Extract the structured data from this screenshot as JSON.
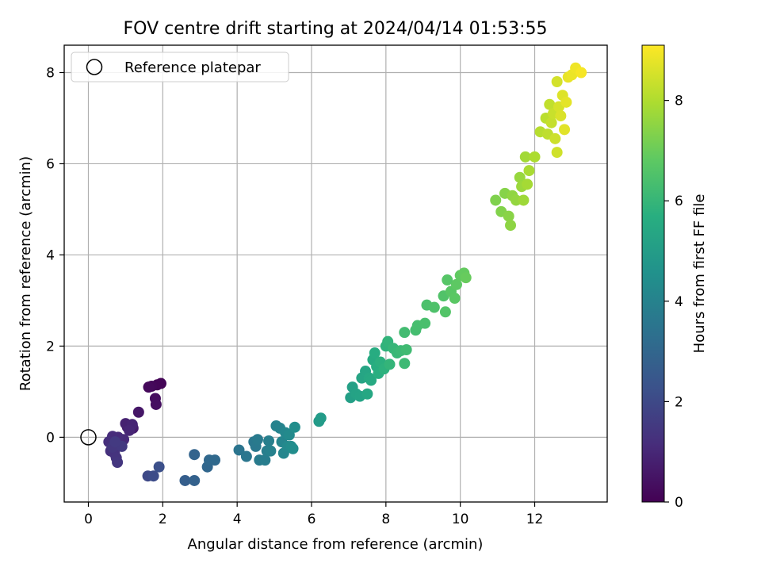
{
  "chart_data": {
    "type": "scatter",
    "title": "FOV centre drift starting at 2024/04/14 01:53:55",
    "xlabel": "Angular distance from reference (arcmin)",
    "ylabel": "Rotation from reference (arcmin)",
    "xlim": [
      -0.65,
      13.95
    ],
    "ylim": [
      -1.42,
      8.6
    ],
    "xticks": [
      0,
      2,
      4,
      6,
      8,
      10,
      12
    ],
    "yticks": [
      0,
      2,
      4,
      6,
      8
    ],
    "grid": true,
    "legend": {
      "placement": "top-left",
      "entries": [
        "Reference platepar"
      ]
    },
    "reference_point": {
      "x": 0,
      "y": 0,
      "marker": "hollow-circle",
      "label": "Reference platepar"
    },
    "colorbar": {
      "label": "Hours from first FF file",
      "colormap": "viridis",
      "range": [
        0,
        9.1
      ],
      "ticks": [
        0,
        2,
        4,
        6,
        8
      ]
    },
    "points": [
      {
        "x": 1.85,
        "y": 1.15,
        "t": 0.05
      },
      {
        "x": 1.95,
        "y": 1.18,
        "t": 0.1
      },
      {
        "x": 1.7,
        "y": 1.12,
        "t": 0.15
      },
      {
        "x": 1.62,
        "y": 1.1,
        "t": 0.2
      },
      {
        "x": 1.8,
        "y": 0.85,
        "t": 0.3
      },
      {
        "x": 1.82,
        "y": 0.72,
        "t": 0.35
      },
      {
        "x": 1.35,
        "y": 0.55,
        "t": 0.55
      },
      {
        "x": 1.2,
        "y": 0.2,
        "t": 0.7
      },
      {
        "x": 1.05,
        "y": 0.22,
        "t": 0.8
      },
      {
        "x": 1.0,
        "y": 0.3,
        "t": 0.85
      },
      {
        "x": 1.18,
        "y": 0.28,
        "t": 0.9
      },
      {
        "x": 1.1,
        "y": 0.15,
        "t": 0.95
      },
      {
        "x": 0.95,
        "y": -0.05,
        "t": 1.05
      },
      {
        "x": 0.8,
        "y": 0.0,
        "t": 1.1
      },
      {
        "x": 0.65,
        "y": 0.02,
        "t": 1.15
      },
      {
        "x": 0.55,
        "y": -0.1,
        "t": 1.2
      },
      {
        "x": 0.6,
        "y": -0.3,
        "t": 1.25
      },
      {
        "x": 0.7,
        "y": -0.35,
        "t": 1.3
      },
      {
        "x": 0.75,
        "y": -0.45,
        "t": 1.35
      },
      {
        "x": 0.78,
        "y": -0.55,
        "t": 1.4
      },
      {
        "x": 0.65,
        "y": -0.22,
        "t": 1.45
      },
      {
        "x": 0.9,
        "y": -0.2,
        "t": 1.5
      },
      {
        "x": 0.72,
        "y": -0.1,
        "t": 1.55
      },
      {
        "x": 1.6,
        "y": -0.85,
        "t": 2.0
      },
      {
        "x": 1.75,
        "y": -0.85,
        "t": 2.1
      },
      {
        "x": 1.9,
        "y": -0.65,
        "t": 2.2
      },
      {
        "x": 2.6,
        "y": -0.95,
        "t": 2.7
      },
      {
        "x": 2.85,
        "y": -0.95,
        "t": 2.8
      },
      {
        "x": 2.85,
        "y": -0.38,
        "t": 2.9
      },
      {
        "x": 3.2,
        "y": -0.65,
        "t": 3.0
      },
      {
        "x": 3.25,
        "y": -0.5,
        "t": 3.05
      },
      {
        "x": 3.4,
        "y": -0.5,
        "t": 3.1
      },
      {
        "x": 4.05,
        "y": -0.28,
        "t": 3.5
      },
      {
        "x": 4.25,
        "y": -0.42,
        "t": 3.55
      },
      {
        "x": 4.45,
        "y": -0.1,
        "t": 3.6
      },
      {
        "x": 4.5,
        "y": -0.2,
        "t": 3.65
      },
      {
        "x": 4.55,
        "y": -0.05,
        "t": 3.7
      },
      {
        "x": 4.6,
        "y": -0.5,
        "t": 3.75
      },
      {
        "x": 4.75,
        "y": -0.5,
        "t": 3.8
      },
      {
        "x": 4.8,
        "y": -0.3,
        "t": 3.85
      },
      {
        "x": 4.85,
        "y": -0.08,
        "t": 3.9
      },
      {
        "x": 4.9,
        "y": -0.3,
        "t": 3.95
      },
      {
        "x": 5.05,
        "y": 0.25,
        "t": 4.0
      },
      {
        "x": 5.15,
        "y": 0.2,
        "t": 4.05
      },
      {
        "x": 5.2,
        "y": -0.1,
        "t": 4.1
      },
      {
        "x": 5.25,
        "y": -0.35,
        "t": 4.15
      },
      {
        "x": 5.3,
        "y": 0.1,
        "t": 4.2
      },
      {
        "x": 5.35,
        "y": -0.2,
        "t": 4.25
      },
      {
        "x": 5.4,
        "y": 0.05,
        "t": 4.3
      },
      {
        "x": 5.45,
        "y": -0.2,
        "t": 4.35
      },
      {
        "x": 5.5,
        "y": -0.25,
        "t": 4.4
      },
      {
        "x": 5.55,
        "y": 0.22,
        "t": 4.45
      },
      {
        "x": 6.2,
        "y": 0.35,
        "t": 4.9
      },
      {
        "x": 6.25,
        "y": 0.42,
        "t": 4.95
      },
      {
        "x": 7.05,
        "y": 0.87,
        "t": 5.1
      },
      {
        "x": 7.1,
        "y": 1.1,
        "t": 5.15
      },
      {
        "x": 7.2,
        "y": 0.95,
        "t": 5.2
      },
      {
        "x": 7.3,
        "y": 0.9,
        "t": 5.25
      },
      {
        "x": 7.35,
        "y": 1.3,
        "t": 5.3
      },
      {
        "x": 7.45,
        "y": 1.45,
        "t": 5.35
      },
      {
        "x": 7.5,
        "y": 0.95,
        "t": 5.4
      },
      {
        "x": 7.55,
        "y": 1.3,
        "t": 5.45
      },
      {
        "x": 7.6,
        "y": 1.25,
        "t": 5.5
      },
      {
        "x": 7.65,
        "y": 1.7,
        "t": 5.55
      },
      {
        "x": 7.7,
        "y": 1.85,
        "t": 5.6
      },
      {
        "x": 7.75,
        "y": 1.55,
        "t": 5.65
      },
      {
        "x": 7.8,
        "y": 1.4,
        "t": 5.7
      },
      {
        "x": 7.85,
        "y": 1.65,
        "t": 5.75
      },
      {
        "x": 7.95,
        "y": 1.5,
        "t": 5.8
      },
      {
        "x": 8.0,
        "y": 2.0,
        "t": 5.85
      },
      {
        "x": 8.05,
        "y": 2.1,
        "t": 5.9
      },
      {
        "x": 8.1,
        "y": 1.6,
        "t": 5.95
      },
      {
        "x": 8.2,
        "y": 1.95,
        "t": 6.0
      },
      {
        "x": 8.3,
        "y": 1.85,
        "t": 6.05
      },
      {
        "x": 8.4,
        "y": 1.9,
        "t": 6.1
      },
      {
        "x": 8.5,
        "y": 1.62,
        "t": 6.15
      },
      {
        "x": 8.55,
        "y": 1.92,
        "t": 6.2
      },
      {
        "x": 8.5,
        "y": 2.3,
        "t": 6.25
      },
      {
        "x": 8.8,
        "y": 2.35,
        "t": 6.3
      },
      {
        "x": 8.85,
        "y": 2.45,
        "t": 6.35
      },
      {
        "x": 9.05,
        "y": 2.5,
        "t": 6.4
      },
      {
        "x": 9.1,
        "y": 2.9,
        "t": 6.45
      },
      {
        "x": 9.3,
        "y": 2.85,
        "t": 6.5
      },
      {
        "x": 9.55,
        "y": 3.1,
        "t": 6.55
      },
      {
        "x": 9.6,
        "y": 2.75,
        "t": 6.6
      },
      {
        "x": 9.65,
        "y": 3.45,
        "t": 6.65
      },
      {
        "x": 9.75,
        "y": 3.2,
        "t": 6.7
      },
      {
        "x": 9.85,
        "y": 3.05,
        "t": 6.75
      },
      {
        "x": 9.9,
        "y": 3.35,
        "t": 6.8
      },
      {
        "x": 10.0,
        "y": 3.55,
        "t": 6.85
      },
      {
        "x": 10.1,
        "y": 3.6,
        "t": 6.9
      },
      {
        "x": 10.15,
        "y": 3.5,
        "t": 6.95
      },
      {
        "x": 10.95,
        "y": 5.2,
        "t": 7.3
      },
      {
        "x": 11.1,
        "y": 4.95,
        "t": 7.35
      },
      {
        "x": 11.2,
        "y": 5.35,
        "t": 7.4
      },
      {
        "x": 11.3,
        "y": 4.85,
        "t": 7.45
      },
      {
        "x": 11.35,
        "y": 4.65,
        "t": 7.5
      },
      {
        "x": 11.4,
        "y": 5.3,
        "t": 7.55
      },
      {
        "x": 11.5,
        "y": 5.2,
        "t": 7.6
      },
      {
        "x": 11.6,
        "y": 5.7,
        "t": 7.65
      },
      {
        "x": 11.65,
        "y": 5.5,
        "t": 7.7
      },
      {
        "x": 11.7,
        "y": 5.2,
        "t": 7.75
      },
      {
        "x": 11.75,
        "y": 6.15,
        "t": 7.8
      },
      {
        "x": 11.8,
        "y": 5.55,
        "t": 7.85
      },
      {
        "x": 11.85,
        "y": 5.85,
        "t": 7.9
      },
      {
        "x": 12.0,
        "y": 6.15,
        "t": 7.95
      },
      {
        "x": 12.15,
        "y": 6.7,
        "t": 8.1
      },
      {
        "x": 12.3,
        "y": 7.0,
        "t": 8.15
      },
      {
        "x": 12.35,
        "y": 6.65,
        "t": 8.2
      },
      {
        "x": 12.4,
        "y": 7.3,
        "t": 8.25
      },
      {
        "x": 12.45,
        "y": 6.9,
        "t": 8.3
      },
      {
        "x": 12.5,
        "y": 7.1,
        "t": 8.35
      },
      {
        "x": 12.55,
        "y": 6.55,
        "t": 8.4
      },
      {
        "x": 12.6,
        "y": 6.25,
        "t": 8.45
      },
      {
        "x": 12.6,
        "y": 7.8,
        "t": 8.5
      },
      {
        "x": 12.65,
        "y": 7.25,
        "t": 8.55
      },
      {
        "x": 12.7,
        "y": 7.05,
        "t": 8.6
      },
      {
        "x": 12.75,
        "y": 7.5,
        "t": 8.65
      },
      {
        "x": 12.8,
        "y": 6.75,
        "t": 8.7
      },
      {
        "x": 12.85,
        "y": 7.35,
        "t": 8.75
      },
      {
        "x": 12.9,
        "y": 7.9,
        "t": 8.8
      },
      {
        "x": 13.0,
        "y": 7.95,
        "t": 8.85
      },
      {
        "x": 13.1,
        "y": 8.1,
        "t": 8.9
      },
      {
        "x": 13.25,
        "y": 8.0,
        "t": 9.0
      }
    ]
  }
}
